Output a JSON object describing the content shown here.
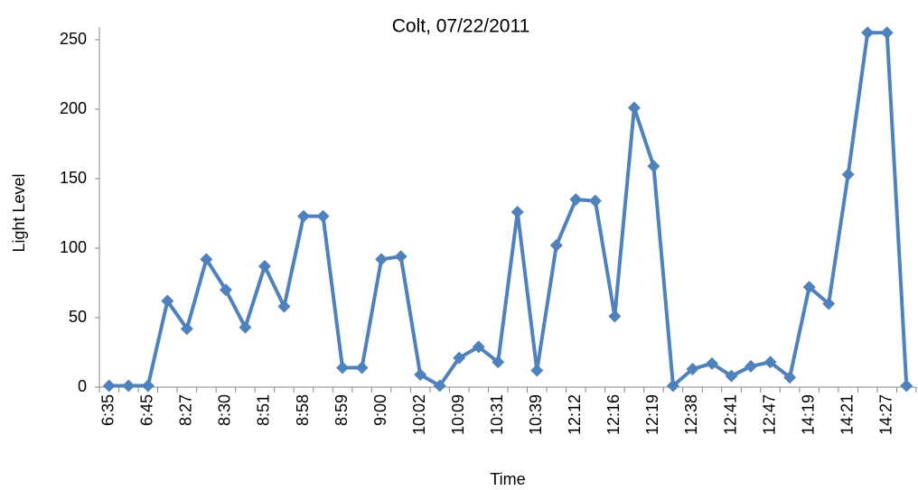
{
  "chart_data": {
    "type": "line",
    "title": "Colt, 07/22/2011",
    "x_label": "Time",
    "y_label": "Light Level",
    "categories": [
      "6:35",
      null,
      "6:45",
      null,
      "8:27",
      null,
      "8:30",
      null,
      "8:51",
      null,
      "8:58",
      null,
      "8:59",
      null,
      "9:00",
      null,
      "10:02",
      null,
      "10:09",
      null,
      "10:31",
      null,
      "10:39",
      null,
      "12:12",
      null,
      "12:16",
      null,
      "12:19",
      null,
      "12:38",
      null,
      "12:41",
      null,
      "12:47",
      null,
      "14:19",
      null,
      "14:21",
      null,
      "14:27",
      null
    ],
    "series": [
      {
        "name": "Light Level",
        "color": "#4f81bd",
        "values": [
          1,
          1,
          1,
          62,
          42,
          92,
          70,
          43,
          87,
          58,
          123,
          123,
          14,
          14,
          92,
          94,
          9,
          1,
          21,
          29,
          18,
          126,
          12,
          102,
          135,
          134,
          51,
          201,
          159,
          1,
          13,
          17,
          8,
          15,
          18,
          7,
          72,
          60,
          153,
          255,
          255,
          1
        ]
      }
    ],
    "ylim": [
      0,
      250
    ],
    "yticks": [
      0,
      50,
      100,
      150,
      200,
      250
    ],
    "grid": false
  }
}
